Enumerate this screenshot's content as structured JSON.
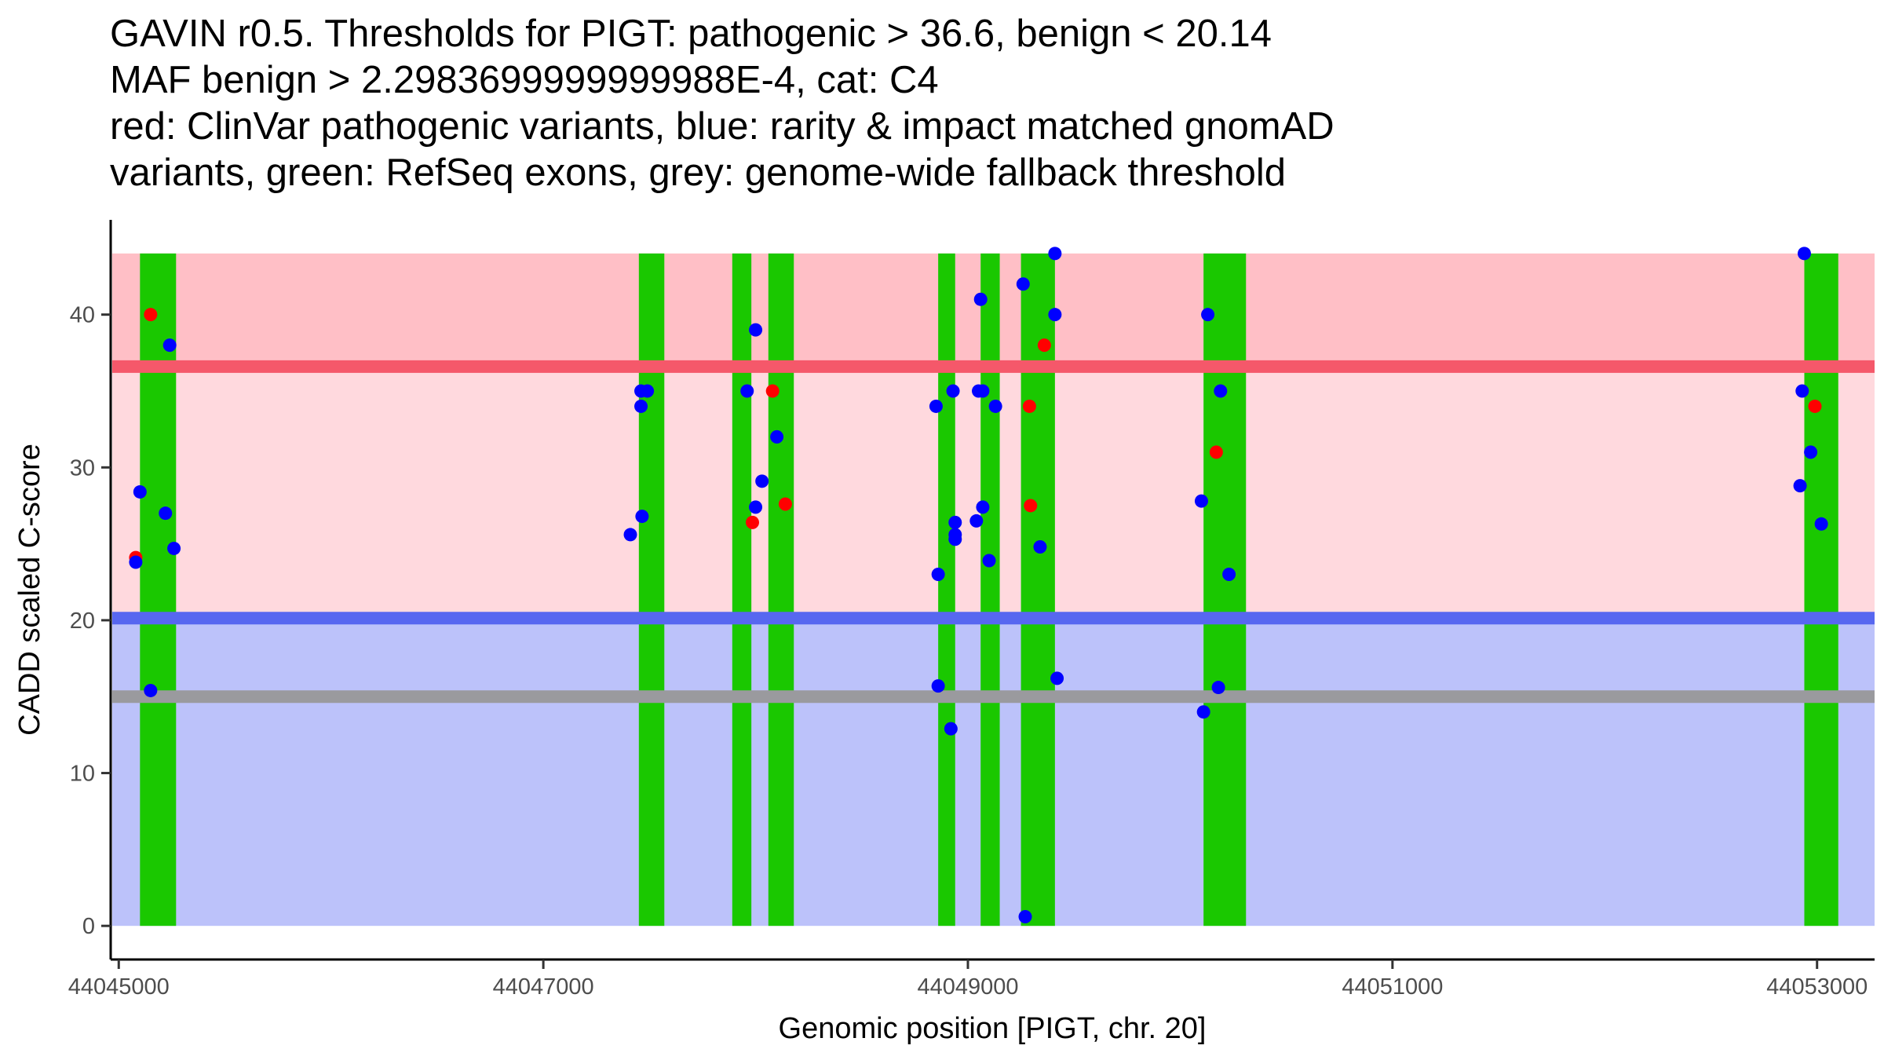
{
  "chart_data": {
    "type": "scatter",
    "title_lines": [
      "GAVIN r0.5. Thresholds for PIGT: pathogenic > 36.6, benign < 20.14",
      "MAF benign > 2.2983699999999988E-4, cat: C4",
      "red: ClinVar pathogenic variants, blue: rarity & impact matched gnomAD",
      "variants, green: RefSeq exons, grey: genome-wide fallback threshold"
    ],
    "xlabel": "Genomic position [PIGT, chr. 20]",
    "ylabel": "CADD scaled C-score",
    "xlim": [
      44044962,
      44053271
    ],
    "ylim": [
      -2.2,
      46.2
    ],
    "x_ticks": [
      44045000,
      44047000,
      44049000,
      44051000,
      44053000
    ],
    "x_tick_labels": [
      "44045000",
      "44047000",
      "44049000",
      "44051000",
      "44053000"
    ],
    "y_ticks": [
      0,
      10,
      20,
      30,
      40
    ],
    "y_tick_labels": [
      "0",
      "10",
      "20",
      "30",
      "40"
    ],
    "grid": false,
    "thresholds": {
      "pathogenic": 36.6,
      "benign": 20.14,
      "fallback": 15,
      "max_score": 44,
      "colors": {
        "pathogenic_zone": "#ffbfc6",
        "middle_zone": "#ffd9de",
        "benign_zone": "#bcc2fa",
        "pathogenic_line": "#f5586a",
        "benign_line": "#5767f0",
        "fallback_line": "#9a9a9e"
      }
    },
    "exons": {
      "color": "#1ac800",
      "ranges": [
        [
          44045100,
          44045270
        ],
        [
          44047450,
          44047570
        ],
        [
          44047890,
          44047980
        ],
        [
          44048060,
          44048180
        ],
        [
          44048860,
          44048940
        ],
        [
          44049060,
          44049150
        ],
        [
          44049250,
          44049410
        ],
        [
          44050110,
          44050310
        ],
        [
          44052940,
          44053100
        ]
      ]
    },
    "series": [
      {
        "name": "ClinVar pathogenic variants",
        "color": "#ff0000",
        "points": [
          [
            44045080,
            24.1
          ],
          [
            44045150,
            40
          ],
          [
            44047985,
            26.4
          ],
          [
            44048080,
            35
          ],
          [
            44048140,
            27.6
          ],
          [
            44049290,
            34
          ],
          [
            44049295,
            27.5
          ],
          [
            44049360,
            38
          ],
          [
            44050170,
            31
          ],
          [
            44052990,
            34
          ]
        ]
      },
      {
        "name": "rarity & impact matched gnomAD variants",
        "color": "#0000ff",
        "points": [
          [
            44045080,
            23.8
          ],
          [
            44045100,
            28.4
          ],
          [
            44045150,
            15.4
          ],
          [
            44045220,
            27
          ],
          [
            44045240,
            38
          ],
          [
            44045260,
            24.7
          ],
          [
            44047410,
            25.6
          ],
          [
            44047460,
            34
          ],
          [
            44047460,
            35
          ],
          [
            44047465,
            26.8
          ],
          [
            44047490,
            35
          ],
          [
            44047960,
            35
          ],
          [
            44048000,
            39
          ],
          [
            44048000,
            27.4
          ],
          [
            44048030,
            29.1
          ],
          [
            44048100,
            32
          ],
          [
            44048850,
            34
          ],
          [
            44048860,
            23
          ],
          [
            44048860,
            15.7
          ],
          [
            44048920,
            12.9
          ],
          [
            44048930,
            35
          ],
          [
            44048940,
            26.4
          ],
          [
            44048940,
            25.6
          ],
          [
            44048940,
            25.3
          ],
          [
            44049040,
            26.5
          ],
          [
            44049050,
            35
          ],
          [
            44049060,
            41
          ],
          [
            44049070,
            35
          ],
          [
            44049070,
            27.4
          ],
          [
            44049100,
            23.9
          ],
          [
            44049130,
            34
          ],
          [
            44049260,
            42
          ],
          [
            44049270,
            0.6
          ],
          [
            44049340,
            24.8
          ],
          [
            44049410,
            44
          ],
          [
            44049410,
            40
          ],
          [
            44049420,
            16.2
          ],
          [
            44050100,
            27.8
          ],
          [
            44050110,
            14
          ],
          [
            44050130,
            40
          ],
          [
            44050180,
            15.6
          ],
          [
            44050190,
            35
          ],
          [
            44050230,
            23
          ],
          [
            44052920,
            28.8
          ],
          [
            44052930,
            35
          ],
          [
            44052940,
            44
          ],
          [
            44052970,
            31
          ],
          [
            44053020,
            26.3
          ]
        ]
      }
    ]
  }
}
